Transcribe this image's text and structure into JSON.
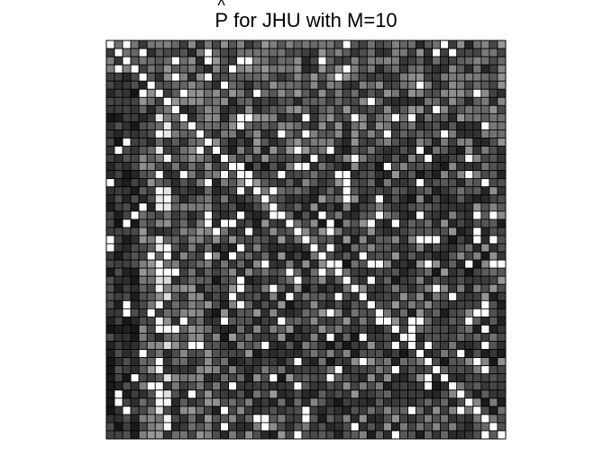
{
  "chart_data": {
    "type": "heatmap",
    "title": {
      "hat_letter": "P",
      "rest": " for JHU with M=10"
    },
    "xlabel": "",
    "ylabel": "",
    "grid": true,
    "colormap": "gray (white = 1, black = 0)",
    "size": 49,
    "diagonal_value": 1,
    "description_of_values": "49x49 matrix, values in [0,1]"
  }
}
